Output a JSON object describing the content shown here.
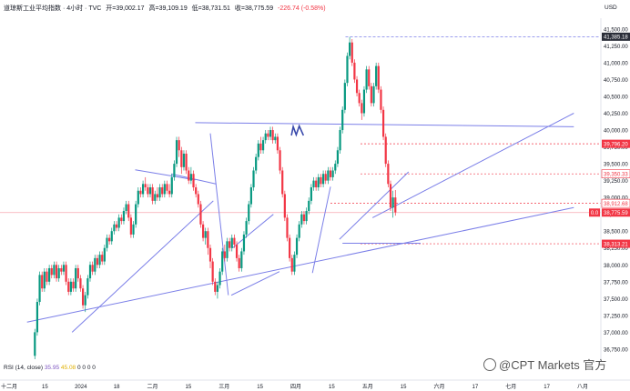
{
  "header": {
    "symbol": "道琼斯工业平均指数 · 4小时 · TVC",
    "open": "开=39,002.17",
    "high": "高=39,109.19",
    "low": "低=38,731.51",
    "close": "收=38,775.59",
    "change": "-226.74 (-0.58%)"
  },
  "currency": "USD",
  "indicator": {
    "label": "RSI (14, close)",
    "v1": "35.95",
    "v2": "45.08",
    "zeros": "0 0 0 0"
  },
  "watermark": "@CPT Markets 官方",
  "colors": {
    "up": "#089981",
    "down": "#f23645",
    "trendline": "#7b7fe8",
    "level": "#f23645",
    "text": "#131722"
  },
  "chart_data": {
    "type": "candlestick",
    "x_ticks": [
      "十二月",
      "15",
      "2024",
      "18",
      "二月",
      "15",
      "三月",
      "15",
      "四月",
      "15",
      "五月",
      "15",
      "六月",
      "17",
      "七月",
      "17",
      "八月"
    ],
    "y_ticks": [
      "41,500.00",
      "41,250.00",
      "41,000.00",
      "40,750.00",
      "40,500.00",
      "40,250.00",
      "40,000.00",
      "39,750.00",
      "39,500.00",
      "39,250.00",
      "39,000.00",
      "38,750.00",
      "38,500.00",
      "38,250.00",
      "38,000.00",
      "37,750.00",
      "37,500.00",
      "37,250.00",
      "37,000.00",
      "36,750.00"
    ],
    "ylim": [
      36560,
      41660
    ],
    "price_labels": [
      {
        "text": "41,385.18",
        "style": "dark"
      },
      {
        "text": "39,796.20",
        "style": "red"
      },
      {
        "text": "39,350.33",
        "style": "outline"
      },
      {
        "text": "38,912.68",
        "style": "outline"
      },
      {
        "text": "38,775.59",
        "style": "red"
      },
      {
        "text": "38,313.21",
        "style": "red"
      }
    ],
    "last_badge": "0.0",
    "levels": [
      41385.18,
      39796.2,
      39350.33,
      38912.68,
      38775.59,
      38313.21
    ],
    "trendlines": [
      {
        "x1": 0.12,
        "y1": 37000,
        "x2": 0.355,
        "y2": 38950
      },
      {
        "x1": 0.045,
        "y1": 37150,
        "x2": 0.955,
        "y2": 38850
      },
      {
        "x1": 0.285,
        "y1": 39350,
        "x2": 0.36,
        "y2": 39200
      },
      {
        "x1": 0.225,
        "y1": 39410,
        "x2": 0.325,
        "y2": 39260
      },
      {
        "x1": 0.325,
        "y1": 40110,
        "x2": 0.955,
        "y2": 40050
      },
      {
        "x1": 0.35,
        "y1": 39950,
        "x2": 0.38,
        "y2": 37550
      },
      {
        "x1": 0.385,
        "y1": 37550,
        "x2": 0.465,
        "y2": 37900
      },
      {
        "x1": 0.387,
        "y1": 38250,
        "x2": 0.455,
        "y2": 38750
      },
      {
        "x1": 0.52,
        "y1": 37880,
        "x2": 0.55,
        "y2": 39160
      },
      {
        "x1": 0.565,
        "y1": 38380,
        "x2": 0.68,
        "y2": 39380
      },
      {
        "x1": 0.62,
        "y1": 38700,
        "x2": 0.955,
        "y2": 40250
      },
      {
        "x1": 0.57,
        "y1": 38320,
        "x2": 0.7,
        "y2": 38320
      }
    ],
    "pattern_marks": [
      {
        "x": 0.485,
        "y": 39920
      },
      {
        "x": 0.488,
        "y": 40050
      },
      {
        "x": 0.493,
        "y": 39930
      },
      {
        "x": 0.498,
        "y": 40060
      },
      {
        "x": 0.505,
        "y": 39920
      }
    ],
    "candles": [
      [
        0.058,
        36650,
        37000,
        36600,
        37050
      ],
      [
        0.062,
        37000,
        37450,
        36950,
        37500
      ],
      [
        0.066,
        37450,
        37850,
        37400,
        37900
      ],
      [
        0.07,
        37850,
        37650,
        37600,
        37900
      ],
      [
        0.074,
        37650,
        37900,
        37600,
        37950
      ],
      [
        0.078,
        37900,
        37750,
        37700,
        37950
      ],
      [
        0.082,
        37750,
        37950,
        37700,
        38000
      ],
      [
        0.086,
        37950,
        37850,
        37800,
        38000
      ],
      [
        0.09,
        37850,
        38000,
        37800,
        38050
      ],
      [
        0.094,
        38000,
        37800,
        37750,
        38050
      ],
      [
        0.098,
        37800,
        37950,
        37750,
        38000
      ],
      [
        0.102,
        37950,
        37900,
        37850,
        38000
      ],
      [
        0.106,
        37900,
        38000,
        37850,
        38050
      ],
      [
        0.11,
        38000,
        37750,
        37700,
        38050
      ],
      [
        0.114,
        37750,
        37600,
        37550,
        37800
      ],
      [
        0.118,
        37600,
        37750,
        37550,
        37800
      ],
      [
        0.122,
        37750,
        37650,
        37600,
        37800
      ],
      [
        0.126,
        37650,
        37950,
        37600,
        38000
      ],
      [
        0.13,
        37950,
        37800,
        37750,
        38000
      ],
      [
        0.134,
        37800,
        37650,
        37600,
        37850
      ],
      [
        0.138,
        37650,
        37400,
        37350,
        37700
      ],
      [
        0.142,
        37400,
        37550,
        37300,
        37600
      ],
      [
        0.146,
        37550,
        37800,
        37500,
        37850
      ],
      [
        0.15,
        37800,
        38000,
        37750,
        38050
      ],
      [
        0.154,
        38000,
        37900,
        37850,
        38050
      ],
      [
        0.158,
        37900,
        38100,
        37850,
        38150
      ],
      [
        0.162,
        38100,
        38000,
        37950,
        38150
      ],
      [
        0.166,
        38000,
        38150,
        37950,
        38200
      ],
      [
        0.17,
        38150,
        38050,
        38000,
        38200
      ],
      [
        0.174,
        38050,
        38250,
        38000,
        38300
      ],
      [
        0.178,
        38250,
        38400,
        38200,
        38450
      ],
      [
        0.182,
        38400,
        38350,
        38300,
        38450
      ],
      [
        0.186,
        38350,
        38500,
        38300,
        38550
      ],
      [
        0.19,
        38500,
        38600,
        38450,
        38650
      ],
      [
        0.194,
        38600,
        38550,
        38500,
        38650
      ],
      [
        0.198,
        38550,
        38700,
        38500,
        38750
      ],
      [
        0.202,
        38700,
        38650,
        38600,
        38750
      ],
      [
        0.206,
        38650,
        38800,
        38600,
        38850
      ],
      [
        0.21,
        38800,
        38900,
        38750,
        38950
      ],
      [
        0.214,
        38900,
        38700,
        38650,
        38950
      ],
      [
        0.218,
        38700,
        38450,
        38400,
        38750
      ],
      [
        0.222,
        38450,
        38600,
        38400,
        38650
      ],
      [
        0.226,
        38600,
        38900,
        38550,
        38950
      ],
      [
        0.23,
        38900,
        39100,
        38850,
        39150
      ],
      [
        0.234,
        39100,
        39050,
        39000,
        39150
      ],
      [
        0.238,
        39050,
        39200,
        39000,
        39250
      ],
      [
        0.242,
        39200,
        39150,
        39100,
        39300
      ],
      [
        0.246,
        39150,
        39050,
        39000,
        39200
      ],
      [
        0.25,
        39050,
        39150,
        39000,
        39200
      ],
      [
        0.254,
        39150,
        38950,
        38900,
        39200
      ],
      [
        0.258,
        38950,
        39050,
        38900,
        39100
      ],
      [
        0.262,
        39050,
        39000,
        38950,
        39150
      ],
      [
        0.266,
        39000,
        39150,
        38950,
        39200
      ],
      [
        0.27,
        39150,
        39050,
        39000,
        39200
      ],
      [
        0.274,
        39050,
        39200,
        39000,
        39250
      ],
      [
        0.278,
        39200,
        39100,
        39050,
        39250
      ],
      [
        0.282,
        39100,
        39050,
        39000,
        39200
      ],
      [
        0.286,
        39050,
        39300,
        39000,
        39350
      ],
      [
        0.29,
        39300,
        39500,
        39250,
        39550
      ],
      [
        0.294,
        39500,
        39850,
        39450,
        39900
      ],
      [
        0.298,
        39850,
        39700,
        39600,
        39900
      ],
      [
        0.302,
        39700,
        39450,
        39350,
        39750
      ],
      [
        0.306,
        39450,
        39650,
        39400,
        39700
      ],
      [
        0.31,
        39650,
        39400,
        39350,
        39700
      ],
      [
        0.314,
        39400,
        39250,
        39200,
        39450
      ],
      [
        0.318,
        39250,
        39350,
        39200,
        39450
      ],
      [
        0.322,
        39350,
        39150,
        39100,
        39400
      ],
      [
        0.326,
        39150,
        39050,
        39000,
        39200
      ],
      [
        0.33,
        39050,
        38900,
        38850,
        39100
      ],
      [
        0.334,
        38900,
        38600,
        38550,
        38950
      ],
      [
        0.338,
        38600,
        38400,
        38350,
        38650
      ],
      [
        0.342,
        38400,
        38500,
        38300,
        38550
      ],
      [
        0.346,
        38500,
        38250,
        38150,
        38550
      ],
      [
        0.35,
        38250,
        38050,
        37950,
        38300
      ],
      [
        0.354,
        38050,
        37750,
        37700,
        38100
      ],
      [
        0.358,
        37750,
        37600,
        37550,
        37800
      ],
      [
        0.362,
        37600,
        37700,
        37500,
        37750
      ],
      [
        0.366,
        37700,
        37900,
        37650,
        37950
      ],
      [
        0.37,
        37900,
        38200,
        37850,
        38250
      ],
      [
        0.374,
        38200,
        38100,
        38050,
        38300
      ],
      [
        0.378,
        38100,
        38350,
        38050,
        38400
      ],
      [
        0.382,
        38350,
        38250,
        38200,
        38400
      ],
      [
        0.386,
        38250,
        38400,
        38200,
        38450
      ],
      [
        0.39,
        38400,
        38300,
        38250,
        38450
      ],
      [
        0.394,
        38300,
        38100,
        38050,
        38350
      ],
      [
        0.398,
        38100,
        37950,
        37900,
        38150
      ],
      [
        0.402,
        37950,
        38200,
        37900,
        38250
      ],
      [
        0.406,
        38200,
        38450,
        38150,
        38500
      ],
      [
        0.41,
        38450,
        38650,
        38400,
        38700
      ],
      [
        0.414,
        38650,
        38900,
        38600,
        38950
      ],
      [
        0.418,
        38900,
        39150,
        38850,
        39200
      ],
      [
        0.422,
        39150,
        39400,
        39100,
        39450
      ],
      [
        0.426,
        39400,
        39600,
        39350,
        39650
      ],
      [
        0.43,
        39600,
        39800,
        39550,
        39850
      ],
      [
        0.434,
        39800,
        39700,
        39650,
        39900
      ],
      [
        0.438,
        39700,
        39850,
        39650,
        39900
      ],
      [
        0.442,
        39850,
        39950,
        39800,
        40000
      ],
      [
        0.446,
        39950,
        39900,
        39850,
        40000
      ],
      [
        0.45,
        39900,
        40000,
        39850,
        40050
      ],
      [
        0.454,
        40000,
        39850,
        39800,
        40050
      ],
      [
        0.458,
        39850,
        39900,
        39800,
        39950
      ],
      [
        0.462,
        39900,
        39700,
        39650,
        39950
      ],
      [
        0.466,
        39700,
        39400,
        39350,
        39750
      ],
      [
        0.47,
        39400,
        39050,
        39000,
        39450
      ],
      [
        0.474,
        39050,
        38700,
        38650,
        39100
      ],
      [
        0.478,
        38700,
        38400,
        38350,
        38750
      ],
      [
        0.482,
        38400,
        38100,
        38050,
        38450
      ],
      [
        0.486,
        38100,
        37900,
        37850,
        38150
      ],
      [
        0.49,
        37900,
        38150,
        37850,
        38200
      ],
      [
        0.494,
        38150,
        38400,
        38100,
        38450
      ],
      [
        0.498,
        38400,
        38600,
        38350,
        38650
      ],
      [
        0.502,
        38600,
        38750,
        38550,
        38800
      ],
      [
        0.506,
        38750,
        38650,
        38600,
        38800
      ],
      [
        0.51,
        38650,
        38800,
        38600,
        38850
      ],
      [
        0.514,
        38800,
        38950,
        38750,
        39000
      ],
      [
        0.518,
        38950,
        39150,
        38900,
        39200
      ],
      [
        0.522,
        39150,
        39250,
        39100,
        39300
      ],
      [
        0.526,
        39250,
        39150,
        39100,
        39300
      ],
      [
        0.53,
        39150,
        39300,
        39100,
        39350
      ],
      [
        0.534,
        39300,
        39200,
        39150,
        39350
      ],
      [
        0.538,
        39200,
        39350,
        39150,
        39400
      ],
      [
        0.542,
        39350,
        39250,
        39200,
        39400
      ],
      [
        0.546,
        39250,
        39400,
        39200,
        39450
      ],
      [
        0.55,
        39400,
        39300,
        39250,
        39450
      ],
      [
        0.554,
        39300,
        39400,
        39250,
        39450
      ],
      [
        0.558,
        39400,
        39500,
        39350,
        39550
      ],
      [
        0.562,
        39500,
        39700,
        39450,
        39750
      ],
      [
        0.566,
        39700,
        40000,
        39650,
        40050
      ],
      [
        0.57,
        40000,
        40300,
        39950,
        40350
      ],
      [
        0.574,
        40300,
        40700,
        40250,
        40750
      ],
      [
        0.578,
        40700,
        41100,
        40650,
        41150
      ],
      [
        0.582,
        41100,
        41300,
        41050,
        41380
      ],
      [
        0.586,
        41300,
        41000,
        40950,
        41350
      ],
      [
        0.59,
        41000,
        40750,
        40700,
        41050
      ],
      [
        0.594,
        40750,
        40550,
        40500,
        40800
      ],
      [
        0.598,
        40550,
        40400,
        40350,
        40600
      ],
      [
        0.602,
        40400,
        40250,
        40150,
        40450
      ],
      [
        0.606,
        40250,
        40600,
        40200,
        40650
      ],
      [
        0.61,
        40600,
        40900,
        40550,
        40950
      ],
      [
        0.614,
        40900,
        40650,
        40600,
        40950
      ],
      [
        0.618,
        40650,
        40400,
        40350,
        40700
      ],
      [
        0.622,
        40400,
        40650,
        40350,
        40700
      ],
      [
        0.626,
        40650,
        40950,
        40600,
        41000
      ],
      [
        0.63,
        40950,
        40600,
        40550,
        41000
      ],
      [
        0.634,
        40600,
        40300,
        40250,
        40650
      ],
      [
        0.638,
        40300,
        39900,
        39850,
        40350
      ],
      [
        0.642,
        39900,
        39500,
        39450,
        39950
      ],
      [
        0.646,
        39500,
        39200,
        39150,
        39550
      ],
      [
        0.65,
        39200,
        38850,
        38800,
        39250
      ],
      [
        0.654,
        38850,
        39000,
        38700,
        39100
      ],
      [
        0.658,
        39000,
        38780,
        38730,
        39110
      ]
    ]
  }
}
